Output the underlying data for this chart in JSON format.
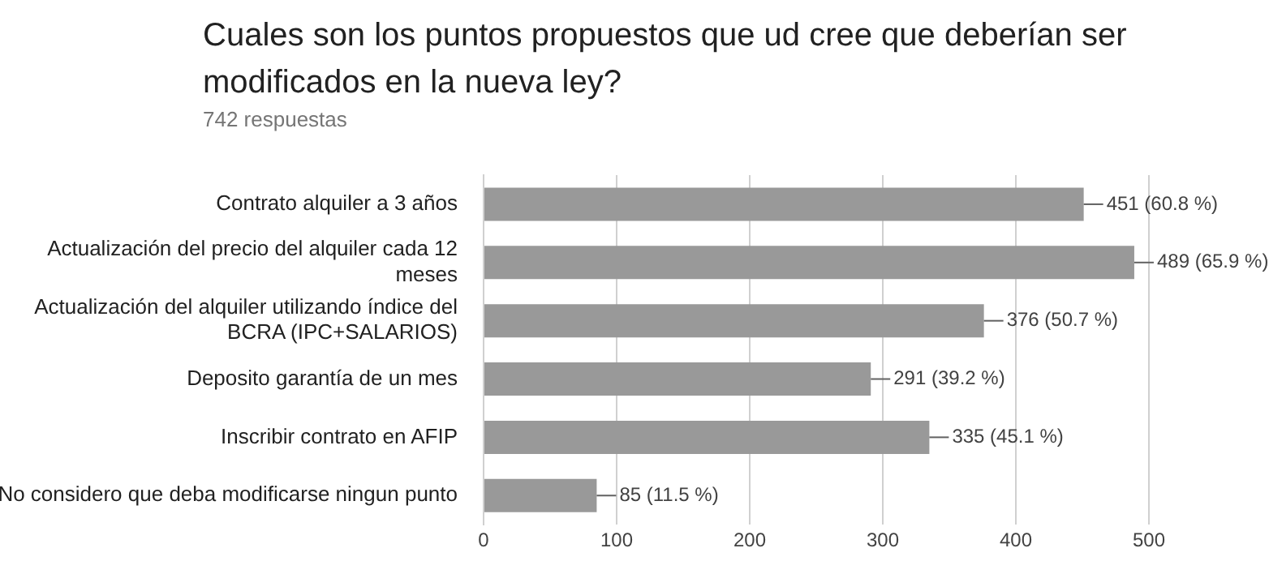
{
  "chart_data": {
    "type": "bar",
    "orientation": "horizontal",
    "title": "Cuales son los puntos propuestos que ud cree que deberían ser modificados en la nueva ley?",
    "subtitle": "742 respuestas",
    "categories": [
      "Contrato alquiler a 3 años",
      "Actualización del precio del alquiler cada 12 meses",
      "Actualización del alquiler utilizando índice del BCRA (IPC+SALARIOS)",
      "Deposito garantía de un mes",
      "Inscribir contrato en AFIP",
      "No considero que deba modificarse ningun punto"
    ],
    "values": [
      451,
      489,
      376,
      291,
      335,
      85
    ],
    "value_labels": [
      "451 (60.8 %)",
      "489 (65.9 %)",
      "376 (50.7 %)",
      "291 (39.2 %)",
      "335 (45.1 %)",
      "85 (11.5 %)"
    ],
    "color": "#999999",
    "xlim": [
      0,
      500
    ],
    "xticks": [
      0,
      100,
      200,
      300,
      400,
      500
    ],
    "grid": "x",
    "legend": false
  }
}
